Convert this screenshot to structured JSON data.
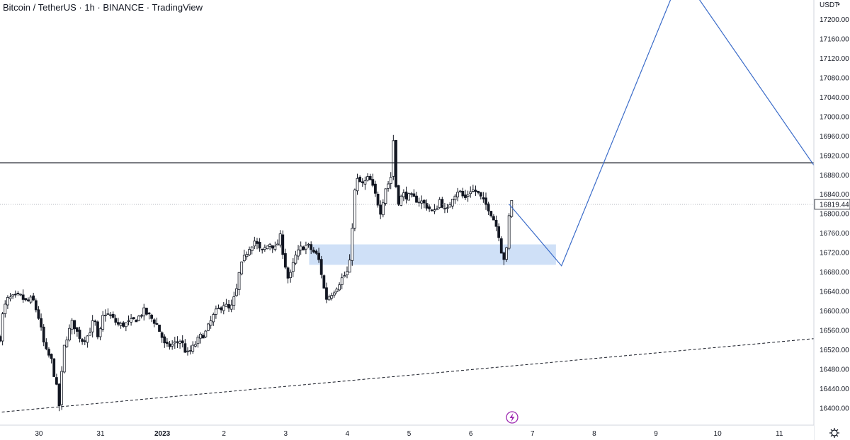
{
  "header": {
    "title": "Bitcoin / TetherUS · 1h · BINANCE · TradingView",
    "currency_label": "USDT",
    "currency_icon": "chevron-down-icon"
  },
  "footer": {
    "event_icon": "lightning-icon",
    "settings_icon": "gear-icon"
  },
  "chart_data": {
    "type": "candlestick",
    "timeframe": "1h",
    "price_axis": {
      "side": "right",
      "ylim": [
        16365,
        17240
      ],
      "ticks": [
        "16400.00",
        "16440.00",
        "16480.00",
        "16520.00",
        "16560.00",
        "16600.00",
        "16640.00",
        "16680.00",
        "16720.00",
        "16760.00",
        "16800.00",
        "16840.00",
        "16880.00",
        "16920.00",
        "16960.00",
        "17000.00",
        "17040.00",
        "17080.00",
        "17120.00",
        "17160.00",
        "17200.00"
      ]
    },
    "time_axis": {
      "xlim_days": [
        -1.63,
        11.56
      ],
      "ticks": [
        {
          "label": "30",
          "day": -1
        },
        {
          "label": "31",
          "day": 0
        },
        {
          "label": "2023",
          "day": 1
        },
        {
          "label": "2",
          "day": 2
        },
        {
          "label": "3",
          "day": 3
        },
        {
          "label": "4",
          "day": 4
        },
        {
          "label": "5",
          "day": 5
        },
        {
          "label": "6",
          "day": 6
        },
        {
          "label": "7",
          "day": 7
        },
        {
          "label": "8",
          "day": 8
        },
        {
          "label": "9",
          "day": 9
        },
        {
          "label": "10",
          "day": 10
        },
        {
          "label": "11",
          "day": 11
        }
      ]
    },
    "candle_colors": {
      "up": "#ffffff",
      "down": "#131722",
      "outline": "#131722"
    },
    "close_path": [
      [
        -1.63,
        16545
      ],
      [
        -1.58,
        16600
      ],
      [
        -1.5,
        16625
      ],
      [
        -1.4,
        16628
      ],
      [
        -1.3,
        16630
      ],
      [
        -1.2,
        16618
      ],
      [
        -1.1,
        16625
      ],
      [
        -1.0,
        16585
      ],
      [
        -0.9,
        16520
      ],
      [
        -0.8,
        16500
      ],
      [
        -0.72,
        16448
      ],
      [
        -0.67,
        16404
      ],
      [
        -0.6,
        16520
      ],
      [
        -0.55,
        16545
      ],
      [
        -0.45,
        16580
      ],
      [
        -0.4,
        16560
      ],
      [
        -0.3,
        16540
      ],
      [
        -0.2,
        16550
      ],
      [
        -0.1,
        16585
      ],
      [
        -0.05,
        16540
      ],
      [
        0.0,
        16560
      ],
      [
        0.05,
        16598
      ],
      [
        0.15,
        16590
      ],
      [
        0.3,
        16570
      ],
      [
        0.45,
        16575
      ],
      [
        0.6,
        16585
      ],
      [
        0.7,
        16600
      ],
      [
        0.8,
        16588
      ],
      [
        0.9,
        16575
      ],
      [
        1.0,
        16545
      ],
      [
        1.05,
        16525
      ],
      [
        1.15,
        16530
      ],
      [
        1.3,
        16540
      ],
      [
        1.4,
        16510
      ],
      [
        1.5,
        16525
      ],
      [
        1.6,
        16545
      ],
      [
        1.7,
        16555
      ],
      [
        1.85,
        16595
      ],
      [
        2.0,
        16615
      ],
      [
        2.1,
        16600
      ],
      [
        2.2,
        16640
      ],
      [
        2.25,
        16680
      ],
      [
        2.3,
        16700
      ],
      [
        2.4,
        16730
      ],
      [
        2.5,
        16745
      ],
      [
        2.6,
        16720
      ],
      [
        2.75,
        16740
      ],
      [
        2.85,
        16725
      ],
      [
        2.9,
        16760
      ],
      [
        3.0,
        16690
      ],
      [
        3.05,
        16660
      ],
      [
        3.15,
        16710
      ],
      [
        3.25,
        16730
      ],
      [
        3.35,
        16735
      ],
      [
        3.5,
        16715
      ],
      [
        3.55,
        16700
      ],
      [
        3.6,
        16660
      ],
      [
        3.65,
        16625
      ],
      [
        3.7,
        16630
      ],
      [
        3.8,
        16645
      ],
      [
        3.9,
        16665
      ],
      [
        4.0,
        16680
      ],
      [
        4.05,
        16705
      ],
      [
        4.1,
        16830
      ],
      [
        4.15,
        16870
      ],
      [
        4.25,
        16860
      ],
      [
        4.35,
        16875
      ],
      [
        4.45,
        16840
      ],
      [
        4.55,
        16800
      ],
      [
        4.6,
        16850
      ],
      [
        4.7,
        16870
      ],
      [
        4.75,
        16960
      ],
      [
        4.8,
        16820
      ],
      [
        4.9,
        16840
      ],
      [
        5.0,
        16835
      ],
      [
        5.1,
        16830
      ],
      [
        5.2,
        16825
      ],
      [
        5.3,
        16815
      ],
      [
        5.4,
        16800
      ],
      [
        5.5,
        16830
      ],
      [
        5.6,
        16800
      ],
      [
        5.7,
        16835
      ],
      [
        5.8,
        16850
      ],
      [
        5.9,
        16830
      ],
      [
        6.0,
        16850
      ],
      [
        6.1,
        16845
      ],
      [
        6.2,
        16825
      ],
      [
        6.3,
        16810
      ],
      [
        6.4,
        16780
      ],
      [
        6.45,
        16760
      ],
      [
        6.5,
        16720
      ],
      [
        6.55,
        16705
      ],
      [
        6.6,
        16740
      ],
      [
        6.63,
        16820
      ],
      [
        6.7,
        16840
      ]
    ],
    "current_price": "16819.44",
    "horizontal_line": {
      "price": 16905,
      "color": "#131722",
      "style": "solid"
    },
    "demand_zone": {
      "day_start": 3.38,
      "day_end": 7.38,
      "price_low": 16695,
      "price_high": 16737,
      "color": "#cfe0f7"
    },
    "projection_path": {
      "color": "#3b6cc9",
      "points": [
        {
          "day": 6.62,
          "price": 16820
        },
        {
          "day": 7.47,
          "price": 16693
        },
        {
          "day": 9.3,
          "price": 17260
        },
        {
          "day": 9.6,
          "price": 17260
        },
        {
          "day": 11.56,
          "price": 16900
        }
      ]
    },
    "trendline": {
      "color": "#131722",
      "style": "dashed",
      "points": [
        {
          "day": -1.6,
          "price": 16392
        },
        {
          "day": 11.56,
          "price": 16543
        }
      ]
    }
  }
}
